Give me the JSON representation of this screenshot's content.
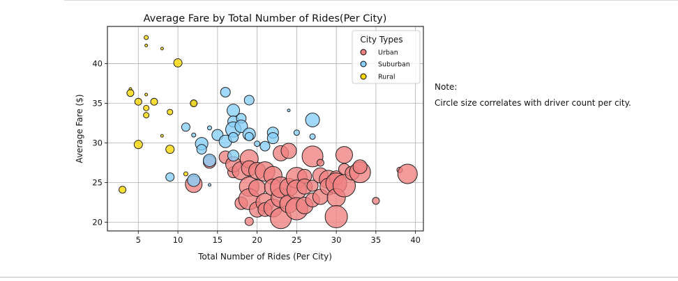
{
  "chart_data": {
    "type": "scatter",
    "title": "Average Fare by Total Number of Rides(Per City)",
    "xlabel": "Total Number of Rides (Per City)",
    "ylabel": "Average Fare ($)",
    "xlim": [
      1.1,
      41
    ],
    "ylim": [
      18.9,
      44.7
    ],
    "xticks": [
      5,
      10,
      15,
      20,
      25,
      30,
      35,
      40
    ],
    "yticks": [
      20,
      25,
      30,
      35,
      40
    ],
    "grid": true,
    "legend": {
      "title": "City Types",
      "position": "top-right"
    },
    "series": [
      {
        "name": "Urban",
        "color": "#F08080",
        "points": [
          {
            "x": 12,
            "y": 24.8,
            "r": 12
          },
          {
            "x": 14,
            "y": 27.6,
            "r": 9
          },
          {
            "x": 16,
            "y": 28.2,
            "r": 9
          },
          {
            "x": 17,
            "y": 26.3,
            "r": 8
          },
          {
            "x": 17,
            "y": 27.3,
            "r": 11
          },
          {
            "x": 18,
            "y": 26.5,
            "r": 13
          },
          {
            "x": 18,
            "y": 22.4,
            "r": 9
          },
          {
            "x": 19,
            "y": 28,
            "r": 13
          },
          {
            "x": 19,
            "y": 26.8,
            "r": 11
          },
          {
            "x": 19,
            "y": 24.5,
            "r": 14
          },
          {
            "x": 19,
            "y": 22.9,
            "r": 15
          },
          {
            "x": 19,
            "y": 20.1,
            "r": 6
          },
          {
            "x": 20,
            "y": 26.5,
            "r": 12
          },
          {
            "x": 20,
            "y": 24.3,
            "r": 12
          },
          {
            "x": 20,
            "y": 21.6,
            "r": 11
          },
          {
            "x": 21,
            "y": 26.4,
            "r": 14
          },
          {
            "x": 21,
            "y": 22.5,
            "r": 13
          },
          {
            "x": 21,
            "y": 21.6,
            "r": 10
          },
          {
            "x": 22,
            "y": 25.9,
            "r": 13
          },
          {
            "x": 22,
            "y": 24.4,
            "r": 12
          },
          {
            "x": 22,
            "y": 21.8,
            "r": 13
          },
          {
            "x": 23,
            "y": 28.7,
            "r": 11
          },
          {
            "x": 23,
            "y": 23.1,
            "r": 14
          },
          {
            "x": 23,
            "y": 24.4,
            "r": 15
          },
          {
            "x": 23,
            "y": 20.5,
            "r": 15
          },
          {
            "x": 24,
            "y": 29,
            "r": 11
          },
          {
            "x": 24,
            "y": 24.4,
            "r": 13
          },
          {
            "x": 24,
            "y": 22.3,
            "r": 13
          },
          {
            "x": 25,
            "y": 25.6,
            "r": 15
          },
          {
            "x": 25,
            "y": 24.1,
            "r": 14
          },
          {
            "x": 25,
            "y": 21.7,
            "r": 16
          },
          {
            "x": 26,
            "y": 25.8,
            "r": 10
          },
          {
            "x": 26,
            "y": 24.5,
            "r": 11
          },
          {
            "x": 26,
            "y": 22.1,
            "r": 12
          },
          {
            "x": 27,
            "y": 28.3,
            "r": 15
          },
          {
            "x": 27,
            "y": 24.6,
            "r": 8
          },
          {
            "x": 27,
            "y": 22.8,
            "r": 10
          },
          {
            "x": 28,
            "y": 27.5,
            "r": 5
          },
          {
            "x": 28,
            "y": 25.9,
            "r": 11
          },
          {
            "x": 28,
            "y": 23.2,
            "r": 11
          },
          {
            "x": 29,
            "y": 25.4,
            "r": 13
          },
          {
            "x": 29,
            "y": 24.5,
            "r": 12
          },
          {
            "x": 30,
            "y": 25.6,
            "r": 10
          },
          {
            "x": 30,
            "y": 24.9,
            "r": 15
          },
          {
            "x": 30,
            "y": 23.1,
            "r": 13
          },
          {
            "x": 30,
            "y": 20.7,
            "r": 16
          },
          {
            "x": 31,
            "y": 28.5,
            "r": 12
          },
          {
            "x": 31,
            "y": 26.7,
            "r": 8
          },
          {
            "x": 31,
            "y": 24.6,
            "r": 16
          },
          {
            "x": 32,
            "y": 26.2,
            "r": 10
          },
          {
            "x": 33,
            "y": 26.3,
            "r": 15
          },
          {
            "x": 33,
            "y": 27,
            "r": 10
          },
          {
            "x": 35,
            "y": 22.7,
            "r": 5
          },
          {
            "x": 38,
            "y": 26.6,
            "r": 4
          },
          {
            "x": 39,
            "y": 26.1,
            "r": 14
          }
        ]
      },
      {
        "name": "Suburban",
        "color": "#87CEFA",
        "points": [
          {
            "x": 9,
            "y": 25.7,
            "r": 6
          },
          {
            "x": 11,
            "y": 32,
            "r": 6
          },
          {
            "x": 12,
            "y": 35,
            "r": 4
          },
          {
            "x": 12,
            "y": 25.3,
            "r": 9
          },
          {
            "x": 12,
            "y": 31,
            "r": 3
          },
          {
            "x": 13,
            "y": 29.9,
            "r": 9
          },
          {
            "x": 13,
            "y": 29.2,
            "r": 7
          },
          {
            "x": 14,
            "y": 31.9,
            "r": 3
          },
          {
            "x": 14,
            "y": 27.8,
            "r": 9
          },
          {
            "x": 14,
            "y": 24.7,
            "r": 2
          },
          {
            "x": 15,
            "y": 31,
            "r": 8
          },
          {
            "x": 16,
            "y": 36.4,
            "r": 7
          },
          {
            "x": 16,
            "y": 30.2,
            "r": 9
          },
          {
            "x": 17,
            "y": 34.1,
            "r": 9
          },
          {
            "x": 17,
            "y": 32.7,
            "r": 8
          },
          {
            "x": 17,
            "y": 31.7,
            "r": 11
          },
          {
            "x": 17,
            "y": 30.7,
            "r": 7
          },
          {
            "x": 17,
            "y": 28.4,
            "r": 8
          },
          {
            "x": 18,
            "y": 33.1,
            "r": 7
          },
          {
            "x": 18,
            "y": 32.1,
            "r": 9
          },
          {
            "x": 19,
            "y": 35.4,
            "r": 7
          },
          {
            "x": 19,
            "y": 31.1,
            "r": 9
          },
          {
            "x": 19,
            "y": 30.8,
            "r": 6
          },
          {
            "x": 20,
            "y": 29.9,
            "r": 4
          },
          {
            "x": 21,
            "y": 29.6,
            "r": 7
          },
          {
            "x": 22,
            "y": 31.3,
            "r": 8
          },
          {
            "x": 22,
            "y": 30.6,
            "r": 8
          },
          {
            "x": 24,
            "y": 34.1,
            "r": 2
          },
          {
            "x": 25,
            "y": 31.3,
            "r": 4
          },
          {
            "x": 27,
            "y": 30.8,
            "r": 4
          },
          {
            "x": 27,
            "y": 32.9,
            "r": 10
          }
        ]
      },
      {
        "name": "Rural",
        "color": "#FFD700",
        "points": [
          {
            "x": 3,
            "y": 24.1,
            "r": 5
          },
          {
            "x": 4,
            "y": 36.8,
            "r": 2
          },
          {
            "x": 4,
            "y": 36.3,
            "r": 5
          },
          {
            "x": 5,
            "y": 35.2,
            "r": 5
          },
          {
            "x": 5,
            "y": 29.8,
            "r": 6
          },
          {
            "x": 6,
            "y": 43.3,
            "r": 3
          },
          {
            "x": 6,
            "y": 42.3,
            "r": 2
          },
          {
            "x": 6,
            "y": 36.1,
            "r": 2
          },
          {
            "x": 6,
            "y": 34.4,
            "r": 4
          },
          {
            "x": 6,
            "y": 33.5,
            "r": 4
          },
          {
            "x": 7,
            "y": 35.2,
            "r": 5
          },
          {
            "x": 8,
            "y": 41.9,
            "r": 2
          },
          {
            "x": 8,
            "y": 30.9,
            "r": 2
          },
          {
            "x": 9,
            "y": 33.9,
            "r": 4
          },
          {
            "x": 9,
            "y": 29.2,
            "r": 6
          },
          {
            "x": 10,
            "y": 40.1,
            "r": 6
          },
          {
            "x": 11,
            "y": 26.1,
            "r": 3
          },
          {
            "x": 12,
            "y": 35,
            "r": 5
          }
        ]
      }
    ]
  },
  "note": {
    "heading": "Note:",
    "text": "Circle size correlates with driver count per city."
  }
}
